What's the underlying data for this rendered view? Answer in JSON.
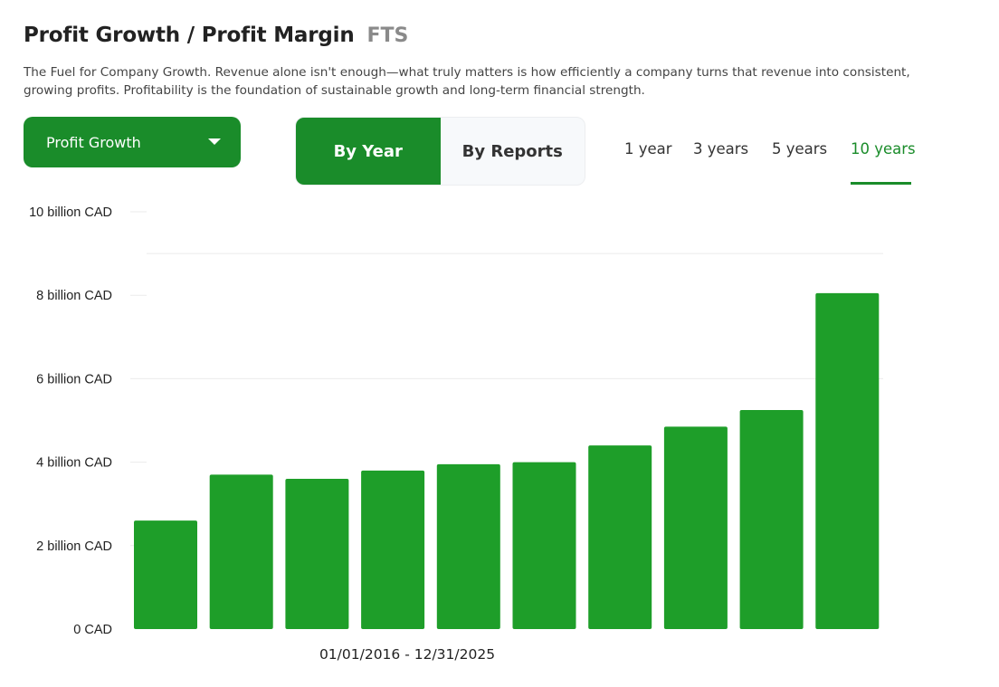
{
  "header": {
    "title": "Profit Growth / Profit Margin",
    "ticker": "FTS",
    "description": "The Fuel for Company Growth. Revenue alone isn't enough—what truly matters is how efficiently a company turns that revenue into consistent, growing profits. Profitability is the foundation of sustainable growth and long-term financial strength."
  },
  "controls": {
    "metric_select": "Profit Growth",
    "view_toggle": [
      {
        "label": "By Year",
        "active": true
      },
      {
        "label": "By Reports",
        "active": false
      }
    ],
    "periods": [
      {
        "label": "1 year",
        "active": false
      },
      {
        "label": "3 years",
        "active": false
      },
      {
        "label": "5 years",
        "active": false
      },
      {
        "label": "10 years",
        "active": true
      }
    ]
  },
  "colors": {
    "accent": "#1a8c2a",
    "bar": "#1e9e29",
    "gridline": "#ebebeb"
  },
  "chart_data": {
    "type": "bar",
    "title": "",
    "xlabel": "01/01/2016 - 12/31/2025",
    "ylabel": "",
    "ylim": [
      0,
      10
    ],
    "yticks": [
      {
        "value": 0,
        "label": "0 CAD"
      },
      {
        "value": 2,
        "label": "2 billion CAD"
      },
      {
        "value": 4,
        "label": "4 billion CAD"
      },
      {
        "value": 6,
        "label": "6 billion CAD"
      },
      {
        "value": 8,
        "label": "8 billion CAD"
      },
      {
        "value": 10,
        "label": "10 billion CAD"
      }
    ],
    "gridlines": [
      9,
      6
    ],
    "grid": true,
    "series": [
      {
        "values": [
          2.6,
          3.7,
          3.6,
          3.8,
          3.95,
          4.0,
          4.4,
          4.85,
          5.25,
          8.05
        ]
      }
    ]
  }
}
